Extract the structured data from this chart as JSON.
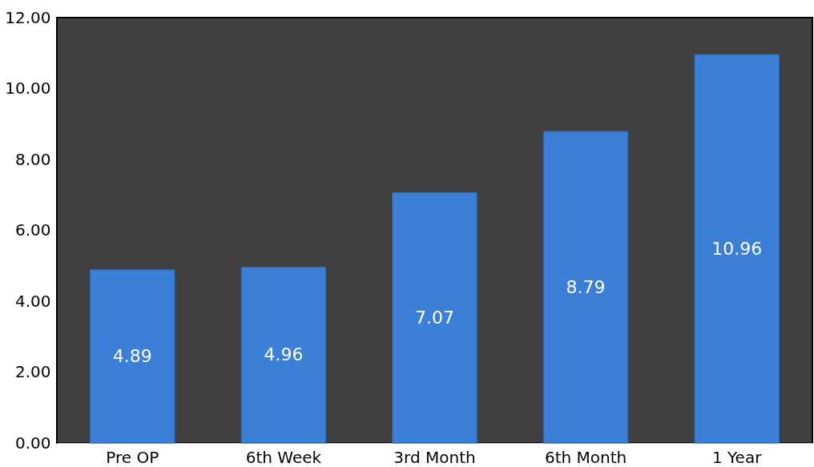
{
  "chart_data": {
    "type": "bar",
    "categories": [
      "Pre OP",
      "6th Week",
      "3rd Month",
      "6th Month",
      "1 Year"
    ],
    "values": [
      4.89,
      4.96,
      7.07,
      8.79,
      10.96
    ],
    "color": "#3c7fd6",
    "ylim": [
      0,
      12
    ],
    "yticks": [
      {
        "value": 0,
        "label": "0.00"
      },
      {
        "value": 2,
        "label": "2.00"
      },
      {
        "value": 4,
        "label": "4.00"
      },
      {
        "value": 6,
        "label": "6.00"
      },
      {
        "value": 8,
        "label": "8.00"
      },
      {
        "value": 10,
        "label": "10.00"
      },
      {
        "value": 12,
        "label": "12.00"
      }
    ],
    "grid": false,
    "data_labels": true
  }
}
